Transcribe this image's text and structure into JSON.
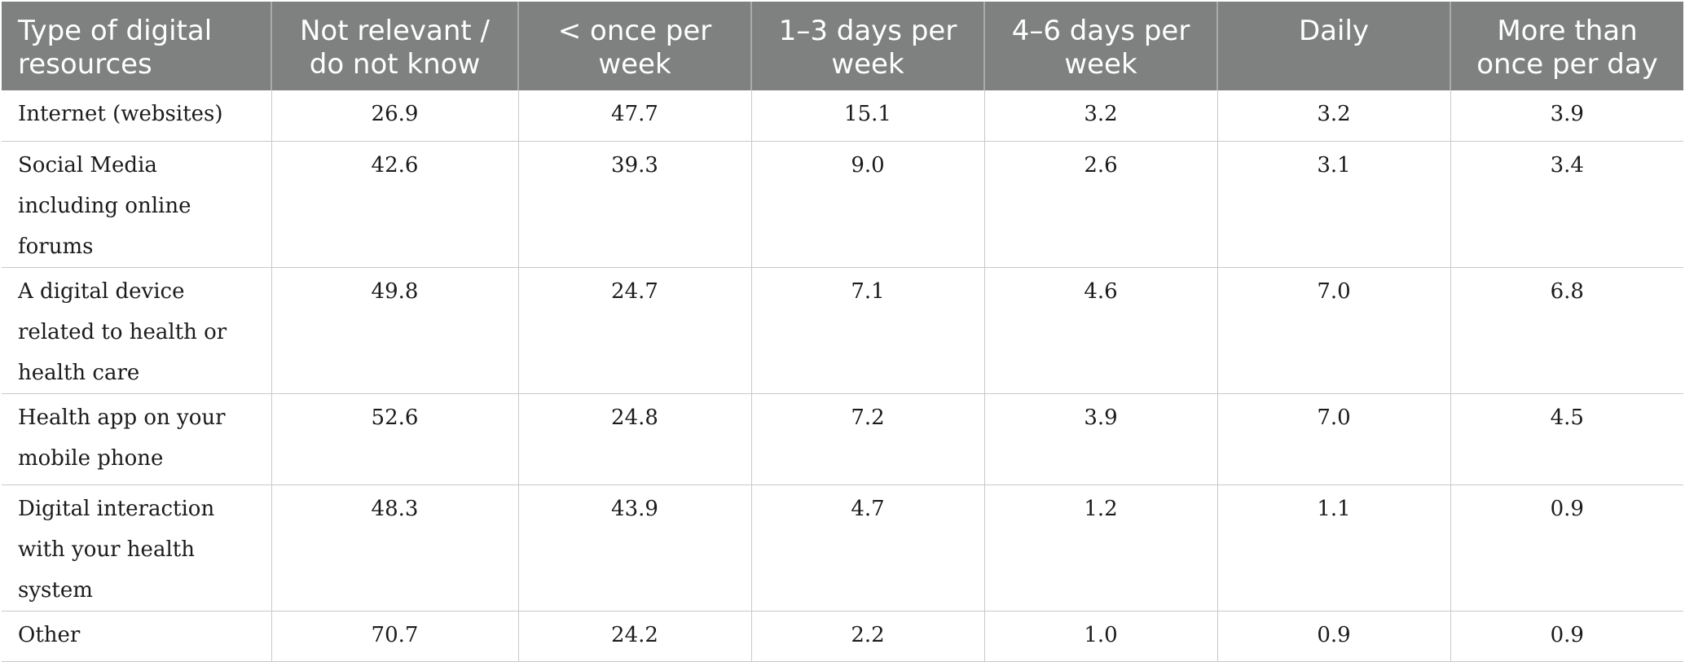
{
  "table": {
    "headers": [
      "Type of digital resources",
      "Not relevant / do not know",
      "< once per week",
      "1–3 days per week",
      "4–6 days per week",
      "Daily",
      "More than once per day"
    ],
    "rows": [
      {
        "type": "Internet (websites)",
        "values": [
          "26.9",
          "47.7",
          "15.1",
          "3.2",
          "3.2",
          "3.9"
        ]
      },
      {
        "type": "Social Media including online forums",
        "values": [
          "42.6",
          "39.3",
          "9.0",
          "2.6",
          "3.1",
          "3.4"
        ]
      },
      {
        "type": "A digital device related to health or health care",
        "values": [
          "49.8",
          "24.7",
          "7.1",
          "4.6",
          "7.0",
          "6.8"
        ]
      },
      {
        "type": "Health app on your mobile phone",
        "values": [
          "52.6",
          "24.8",
          "7.2",
          "3.9",
          "7.0",
          "4.5"
        ]
      },
      {
        "type": "Digital interaction with your health system",
        "values": [
          "48.3",
          "43.9",
          "4.7",
          "1.2",
          "1.1",
          "0.9"
        ]
      },
      {
        "type": "Other",
        "values": [
          "70.7",
          "24.2",
          "2.2",
          "1.0",
          "0.9",
          "0.9"
        ]
      }
    ]
  },
  "colors": {
    "header_background": "#7f8180",
    "header_text": "#ffffff",
    "grid_line": "#c9c9c9"
  }
}
